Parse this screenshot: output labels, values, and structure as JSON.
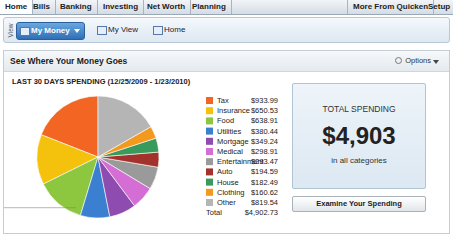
{
  "nav": {
    "tabs": [
      "Home",
      "Bills",
      "Banking",
      "Investing",
      "Net Worth",
      "Planning"
    ],
    "right_tabs": [
      "More From Quicken",
      "Setup"
    ]
  },
  "view": {
    "label": "View",
    "buttons": [
      "My Money",
      "My View",
      "Home"
    ]
  },
  "panel": {
    "title": "See Where Your Money Goes",
    "options": "Options",
    "total_label": "Total",
    "total_value": "$4,902.73",
    "summary": {
      "heading": "TOTAL SPENDING",
      "amount": "$4,903",
      "caption": "in all categories"
    },
    "button": "Examine Your Spending"
  },
  "chart_data": {
    "type": "pie",
    "title": "LAST 30 DAYS SPENDING (12/25/2009 - 1/23/2010)",
    "categories": [
      "Tax",
      "Insurance",
      "Food",
      "Utilities",
      "Mortgage",
      "Medical",
      "Entertainment",
      "Auto",
      "House",
      "Clothing",
      "Other"
    ],
    "values": [
      933.99,
      650.53,
      638.91,
      380.44,
      349.24,
      298.91,
      293.47,
      194.59,
      182.49,
      160.62,
      819.54
    ],
    "value_labels": [
      "$933.99",
      "$650.53",
      "$638.91",
      "$380.44",
      "$349.24",
      "$298.91",
      "$293.47",
      "$194.59",
      "$182.49",
      "$160.62",
      "$819.54"
    ],
    "colors": [
      "#f26522",
      "#f4c20d",
      "#8dc63f",
      "#3a7fd0",
      "#8e4bb0",
      "#d46ed4",
      "#9a9a9a",
      "#a3322c",
      "#3a9a5c",
      "#f39a1e",
      "#b5b5b5"
    ],
    "legend": "right"
  }
}
